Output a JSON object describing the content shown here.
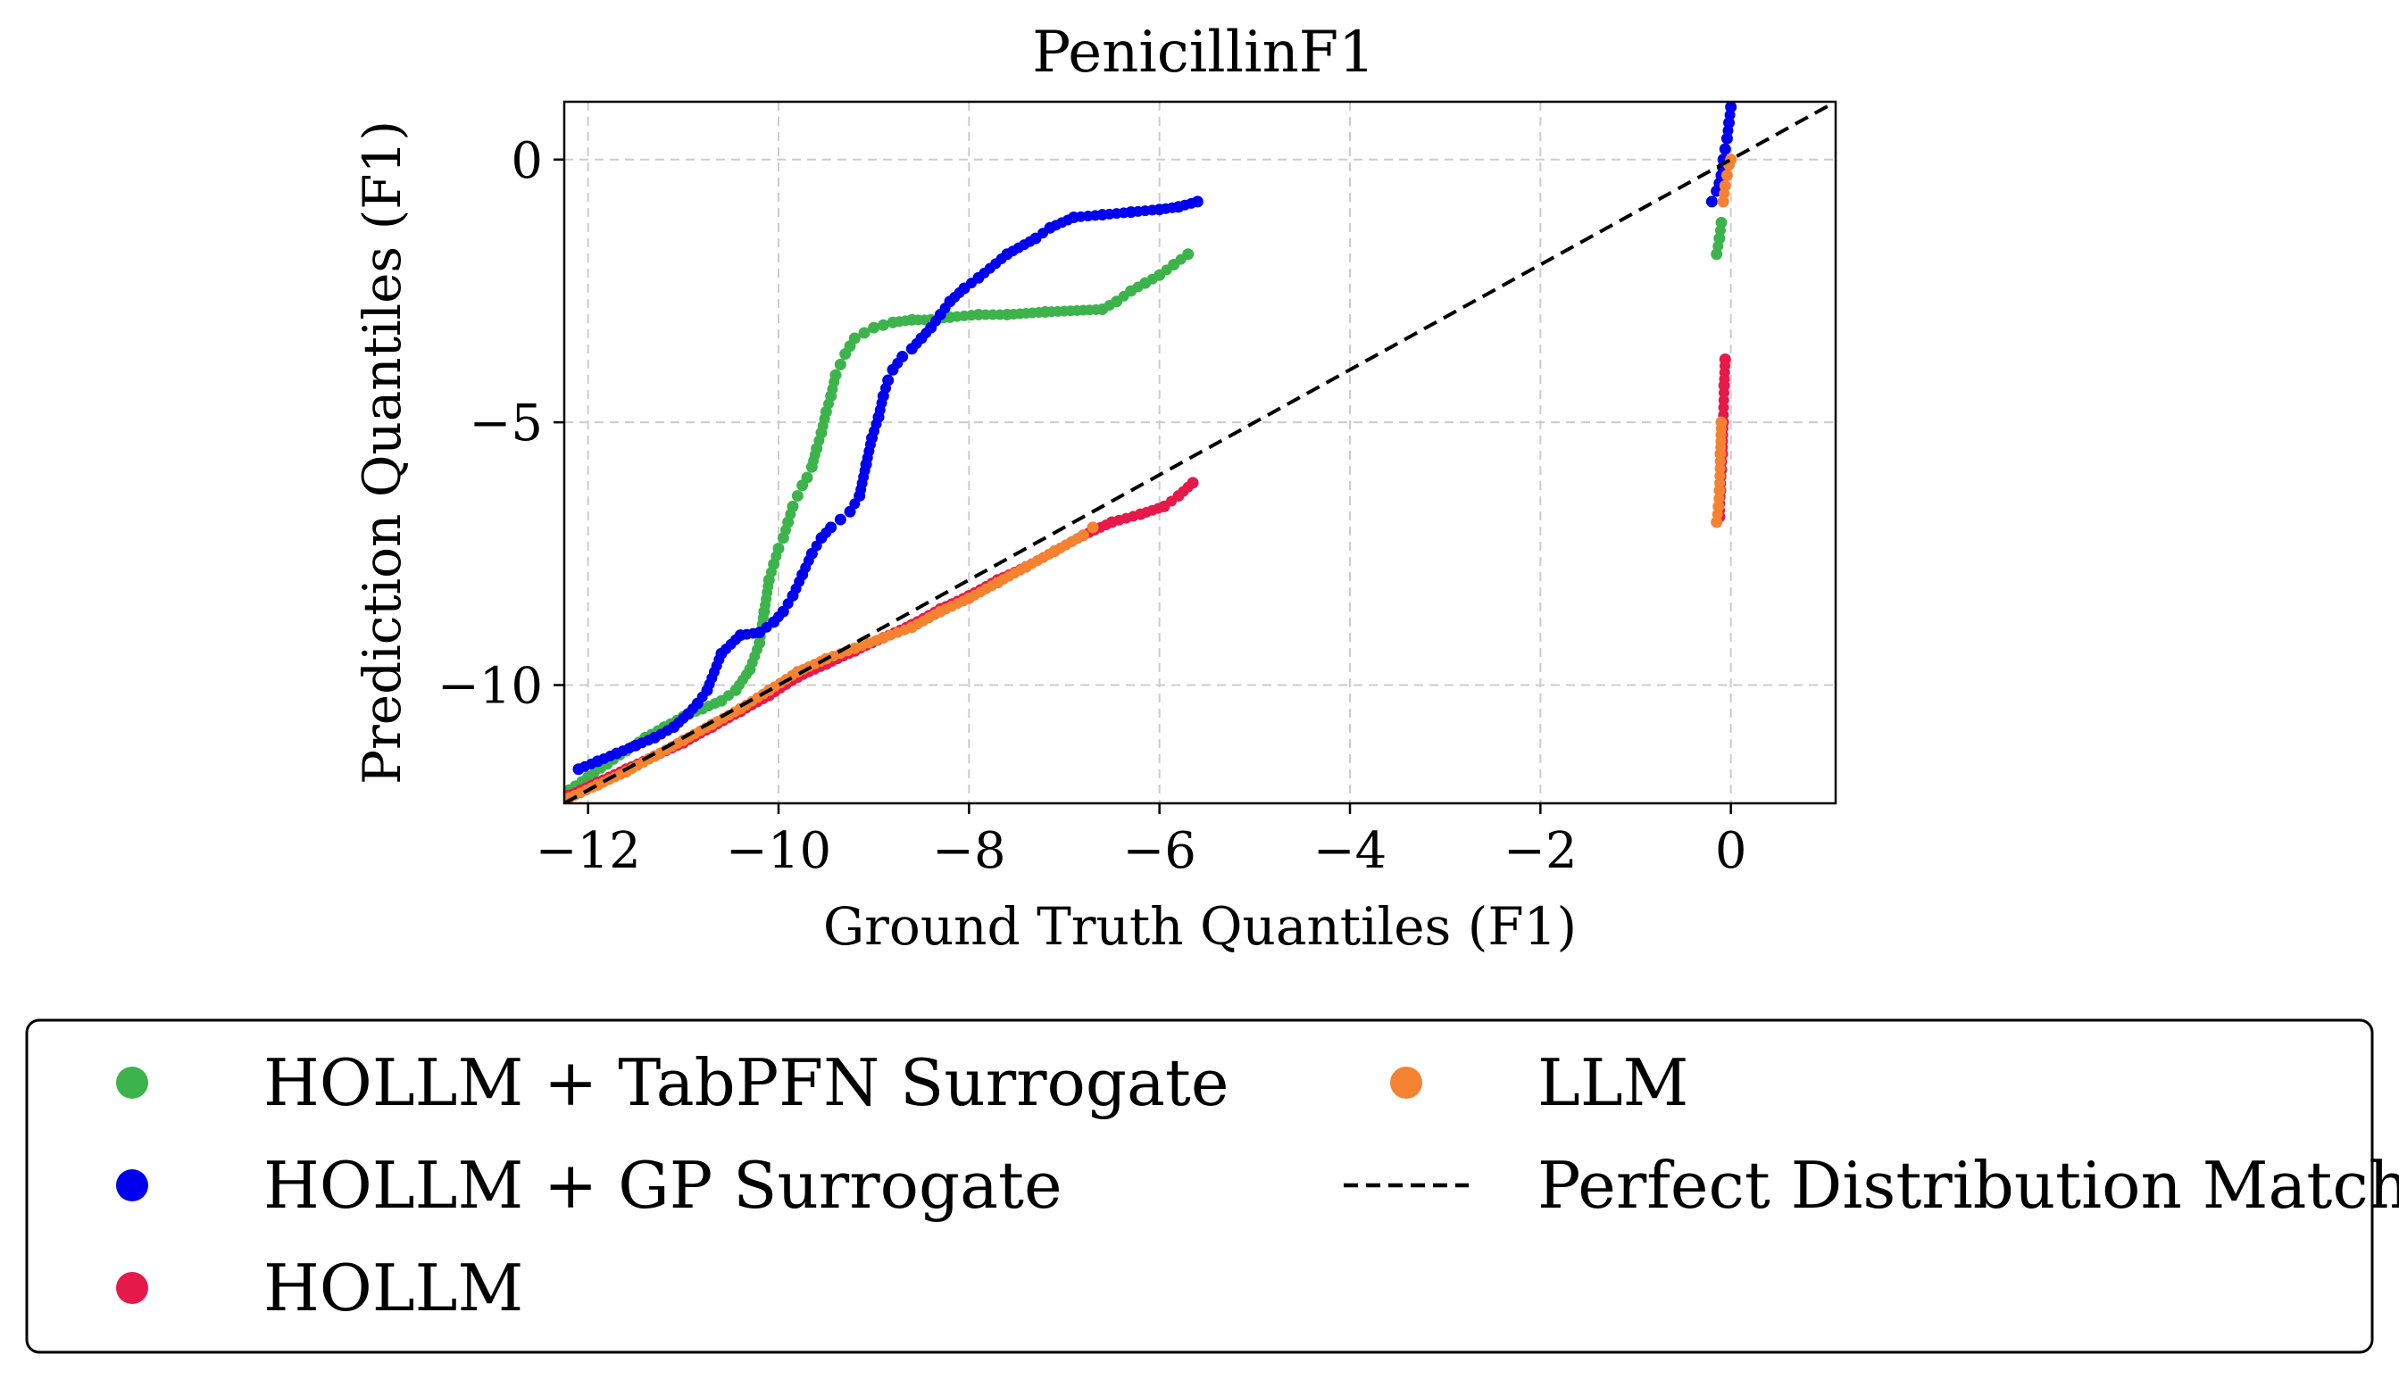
{
  "chart_data": {
    "type": "scatter",
    "title": "PenicillinF1",
    "xlabel": "Ground Truth Quantiles (F1)",
    "ylabel": "Prediction Quantiles (F1)",
    "xlim": [
      -12.25,
      1.1
    ],
    "ylim": [
      -12.25,
      1.1
    ],
    "x_ticks": [
      -12,
      -10,
      -8,
      -6,
      -4,
      -2,
      0
    ],
    "y_ticks": [
      0,
      -5,
      -10
    ],
    "x_tick_labels": [
      "−12",
      "−10",
      "−8",
      "−6",
      "−4",
      "−2",
      "0"
    ],
    "y_tick_labels": [
      "0",
      "−5",
      "−10"
    ],
    "grid": true,
    "legend_position": "bottom",
    "series": [
      {
        "name": "HOLLM + TabPFN Surrogate",
        "color": "#3cb44b",
        "marker": "dot",
        "x": [
          -12.2,
          -12.0,
          -11.8,
          -11.6,
          -11.4,
          -11.2,
          -11.0,
          -10.8,
          -10.6,
          -10.45,
          -10.3,
          -10.2,
          -10.15,
          -10.1,
          -10.05,
          -10.0,
          -9.95,
          -9.9,
          -9.85,
          -9.8,
          -9.75,
          -9.7,
          -9.65,
          -9.6,
          -9.55,
          -9.5,
          -9.45,
          -9.4,
          -9.35,
          -9.3,
          -9.25,
          -9.2,
          -9.1,
          -9.0,
          -8.9,
          -8.8,
          -8.6,
          -8.4,
          -8.2,
          -7.9,
          -7.6,
          -7.2,
          -6.6,
          -6.45,
          -6.3,
          -6.15,
          -6.0,
          -5.85,
          -5.7,
          -0.15,
          -0.12,
          -0.1
        ],
        "y": [
          -12.0,
          -11.75,
          -11.5,
          -11.25,
          -11.0,
          -10.8,
          -10.6,
          -10.45,
          -10.3,
          -10.1,
          -9.7,
          -9.2,
          -8.6,
          -8.0,
          -7.7,
          -7.4,
          -7.2,
          -6.9,
          -6.6,
          -6.4,
          -6.2,
          -6.05,
          -5.85,
          -5.5,
          -5.2,
          -4.8,
          -4.5,
          -4.1,
          -3.9,
          -3.7,
          -3.55,
          -3.4,
          -3.3,
          -3.2,
          -3.15,
          -3.1,
          -3.05,
          -3.05,
          -3.0,
          -2.95,
          -2.95,
          -2.9,
          -2.85,
          -2.7,
          -2.5,
          -2.35,
          -2.2,
          -2.0,
          -1.8,
          -1.8,
          -1.5,
          -1.2
        ]
      },
      {
        "name": "HOLLM + GP Surrogate",
        "color": "#0000ee",
        "marker": "dot",
        "x": [
          -12.1,
          -11.9,
          -11.7,
          -11.5,
          -11.3,
          -11.1,
          -10.95,
          -10.85,
          -10.75,
          -10.6,
          -10.4,
          -10.2,
          -10.05,
          -9.95,
          -9.85,
          -9.75,
          -9.65,
          -9.55,
          -9.45,
          -9.35,
          -9.25,
          -9.15,
          -9.08,
          -9.02,
          -8.95,
          -8.9,
          -8.85,
          -8.8,
          -8.7,
          -8.6,
          -8.5,
          -8.4,
          -8.3,
          -8.2,
          -8.05,
          -7.9,
          -7.6,
          -7.3,
          -7.15,
          -6.9,
          -6.6,
          -6.3,
          -6.0,
          -5.8,
          -5.6,
          -0.2,
          -0.15,
          -0.1,
          -0.08,
          -0.06,
          -0.04,
          -0.02,
          0.0
        ],
        "y": [
          -11.6,
          -11.45,
          -11.3,
          -11.15,
          -11.0,
          -10.8,
          -10.55,
          -10.35,
          -10.1,
          -9.4,
          -9.05,
          -9.0,
          -8.8,
          -8.6,
          -8.3,
          -7.9,
          -7.5,
          -7.2,
          -7.0,
          -6.85,
          -6.7,
          -6.4,
          -5.8,
          -5.3,
          -4.9,
          -4.5,
          -4.2,
          -4.0,
          -3.75,
          -3.6,
          -3.4,
          -3.2,
          -2.95,
          -2.7,
          -2.45,
          -2.25,
          -1.8,
          -1.5,
          -1.3,
          -1.1,
          -1.05,
          -1.0,
          -0.95,
          -0.9,
          -0.8,
          -0.8,
          -0.6,
          -0.3,
          0.0,
          0.2,
          0.4,
          0.7,
          1.0
        ]
      },
      {
        "name": "HOLLM",
        "color": "#e6194b",
        "marker": "dot",
        "x": [
          -12.2,
          -11.9,
          -11.6,
          -11.3,
          -11.0,
          -10.7,
          -10.4,
          -10.1,
          -9.8,
          -9.5,
          -9.2,
          -8.9,
          -8.6,
          -8.3,
          -8.0,
          -7.7,
          -7.4,
          -7.1,
          -6.8,
          -6.5,
          -6.2,
          -5.95,
          -5.8,
          -5.65,
          -0.12,
          -0.11,
          -0.1,
          -0.09,
          -0.08,
          -0.07,
          -0.06
        ],
        "y": [
          -12.1,
          -11.85,
          -11.6,
          -11.35,
          -11.1,
          -10.8,
          -10.5,
          -10.2,
          -9.85,
          -9.6,
          -9.35,
          -9.1,
          -8.85,
          -8.55,
          -8.3,
          -8.0,
          -7.75,
          -7.45,
          -7.15,
          -6.9,
          -6.75,
          -6.6,
          -6.4,
          -6.15,
          -6.8,
          -6.3,
          -5.9,
          -5.6,
          -5.0,
          -4.3,
          -3.8
        ]
      },
      {
        "name": "LLM",
        "color": "#f58231",
        "marker": "dot",
        "x": [
          -12.2,
          -11.9,
          -11.6,
          -11.3,
          -11.0,
          -10.7,
          -10.4,
          -10.1,
          -9.8,
          -9.5,
          -9.2,
          -8.9,
          -8.6,
          -8.3,
          -8.0,
          -7.7,
          -7.4,
          -7.1,
          -6.8,
          -6.7,
          -0.15,
          -0.13,
          -0.12,
          -0.11,
          -0.1,
          -0.08,
          -0.06,
          -0.04,
          -0.02,
          0.0
        ],
        "y": [
          -12.15,
          -11.9,
          -11.65,
          -11.35,
          -11.05,
          -10.75,
          -10.45,
          -10.1,
          -9.75,
          -9.5,
          -9.3,
          -9.1,
          -8.9,
          -8.6,
          -8.35,
          -8.05,
          -7.75,
          -7.45,
          -7.15,
          -7.0,
          -6.9,
          -6.6,
          -6.3,
          -5.6,
          -5.0,
          -0.8,
          -0.5,
          -0.3,
          -0.1,
          0.0
        ]
      },
      {
        "name": "Perfect Distribution Match",
        "color": "#000000",
        "style": "dashed",
        "x": [
          -12.25,
          1.1
        ],
        "y": [
          -12.25,
          1.1
        ]
      }
    ]
  }
}
